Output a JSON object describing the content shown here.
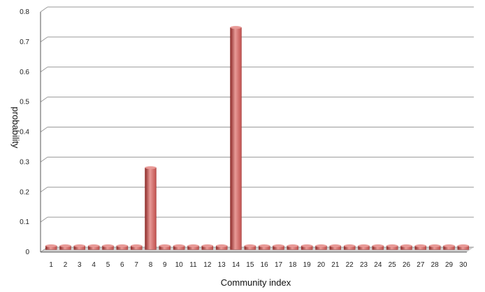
{
  "chart_data": {
    "type": "bar",
    "title": "",
    "xlabel": "Community index",
    "ylabel": "probability",
    "ylim": [
      0,
      0.8
    ],
    "yticks": [
      "0",
      "0.1",
      "0.2",
      "0.3",
      "0.4",
      "0.5",
      "0.6",
      "0.7",
      "0.8"
    ],
    "ytick_values": [
      0,
      0.1,
      0.2,
      0.3,
      0.4,
      0.5,
      0.6,
      0.7,
      0.8
    ],
    "categories": [
      "1",
      "2",
      "3",
      "4",
      "5",
      "6",
      "7",
      "8",
      "9",
      "10",
      "11",
      "12",
      "13",
      "14",
      "15",
      "16",
      "17",
      "18",
      "19",
      "20",
      "21",
      "22",
      "23",
      "24",
      "25",
      "26",
      "27",
      "28",
      "29",
      "30"
    ],
    "values": [
      0,
      0,
      0,
      0,
      0,
      0,
      0,
      0.265,
      0,
      0,
      0,
      0,
      0,
      0.732,
      0,
      0,
      0,
      0,
      0,
      0,
      0,
      0,
      0,
      0,
      0,
      0,
      0,
      0,
      0,
      0
    ],
    "grid": true,
    "legend": "none",
    "colors": {
      "bar": "#c0504d",
      "bar_light": "#e89a97",
      "bar_dark": "#8c2a28",
      "grid": "#9a9a9a",
      "floor": "#d0d0d0"
    }
  }
}
